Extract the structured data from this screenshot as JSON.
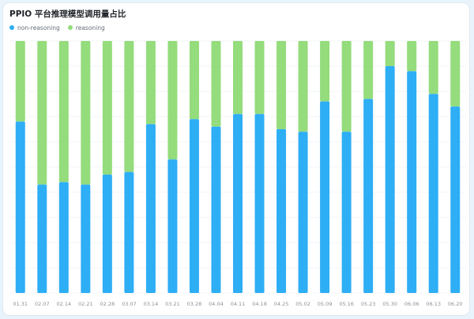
{
  "chart_data": {
    "type": "bar",
    "stacked": true,
    "normalized": true,
    "title": "PPIO 平台推理模型调用量占比",
    "legend_position": "top-left",
    "grid": true,
    "ylim": [
      0,
      100
    ],
    "categories": [
      "01.31",
      "02.07",
      "02.14",
      "02.21",
      "02.28",
      "03.07",
      "03.14",
      "03.21",
      "03.28",
      "04.04",
      "04.11",
      "04.18",
      "04.25",
      "05.02",
      "05.09",
      "05.16",
      "05.23",
      "05.30",
      "06.06",
      "06.13",
      "06.20"
    ],
    "series": [
      {
        "name": "non-reasoning",
        "color": "#2eaef5",
        "values": [
          68,
          43,
          44,
          43,
          47,
          48,
          67,
          53,
          69,
          66,
          71,
          71,
          65,
          64,
          76,
          64,
          77,
          90,
          88,
          79,
          74
        ]
      },
      {
        "name": "reasoning",
        "color": "#94dc7c",
        "values": [
          32,
          57,
          56,
          57,
          53,
          52,
          33,
          47,
          31,
          34,
          29,
          29,
          35,
          36,
          24,
          36,
          23,
          10,
          12,
          21,
          26
        ]
      }
    ]
  }
}
